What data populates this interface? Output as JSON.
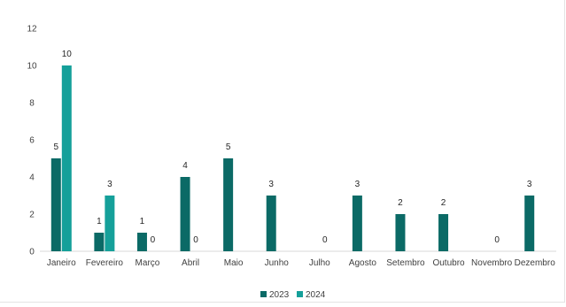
{
  "chart_data": {
    "type": "bar",
    "categories": [
      "Janeiro",
      "Fevereiro",
      "Março",
      "Abril",
      "Maio",
      "Junho",
      "Julho",
      "Agosto",
      "Setembro",
      "Outubro",
      "Novembro",
      "Dezembro"
    ],
    "series": [
      {
        "name": "2023",
        "color": "#0b6a66",
        "values": [
          5,
          1,
          1,
          4,
          5,
          3,
          null,
          3,
          2,
          2,
          null,
          3
        ],
        "labels": [
          "5",
          "1",
          "1",
          "4",
          "5",
          "3",
          "",
          "3",
          "2",
          "2",
          "",
          "3"
        ]
      },
      {
        "name": "2024",
        "color": "#15a09a",
        "values": [
          10,
          3,
          0,
          0,
          null,
          null,
          0,
          null,
          null,
          null,
          0,
          null
        ],
        "labels": [
          "10",
          "3",
          "0",
          "0",
          "",
          "",
          "0",
          "",
          "",
          "",
          "0",
          ""
        ]
      }
    ],
    "yticks": [
      "0",
      "2",
      "4",
      "6",
      "8",
      "10",
      "12"
    ],
    "ylim": [
      0,
      12
    ],
    "grid": false,
    "legend": "bottom"
  }
}
